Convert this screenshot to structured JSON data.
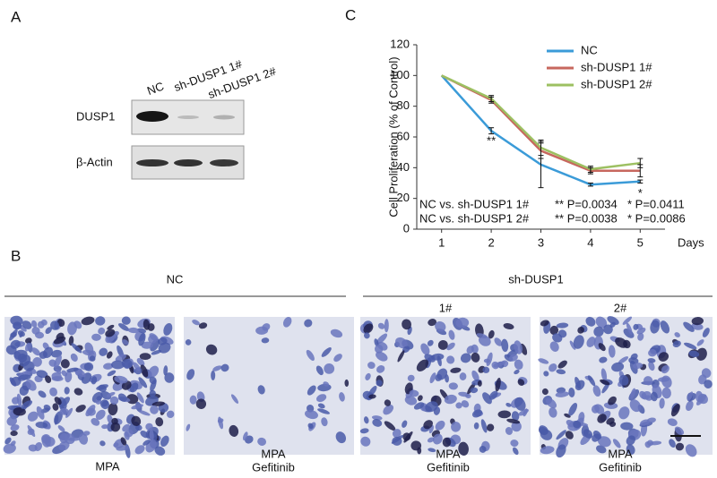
{
  "panel_a": {
    "panel_label": "A",
    "lanes": [
      "NC",
      "sh-DUSP1 1#",
      "sh-DUSP1 2#"
    ],
    "rows": [
      "DUSP1",
      "β-Actin"
    ]
  },
  "chart_data": {
    "type": "line",
    "panel_label": "C",
    "x": [
      1,
      2,
      3,
      4,
      5
    ],
    "xlim": [
      0.5,
      5.5
    ],
    "xticks": [
      1,
      2,
      3,
      4,
      5
    ],
    "x_label": "Days",
    "y_label": "Cell Proliferation (% of Control)",
    "ylim": [
      0,
      120
    ],
    "yticks": [
      0,
      20,
      40,
      60,
      80,
      100,
      120
    ],
    "legend": "top-right",
    "series": [
      {
        "name": "NC",
        "color": "#3b9bd8",
        "values": [
          100,
          64,
          42,
          29,
          31
        ],
        "errors": [
          0,
          2,
          15,
          1,
          1
        ]
      },
      {
        "name": "sh-DUSP1 1#",
        "color": "#c7675e",
        "values": [
          100,
          84,
          51,
          38,
          38
        ],
        "errors": [
          0,
          2,
          5,
          2,
          4
        ]
      },
      {
        "name": "sh-DUSP1 2#",
        "color": "#9dc062",
        "values": [
          100,
          85,
          53,
          39,
          43
        ],
        "errors": [
          0,
          2,
          5,
          2,
          3
        ]
      }
    ],
    "annotations": [
      {
        "x": 2,
        "y": 57,
        "text": "**"
      },
      {
        "x": 5,
        "y": 23,
        "text": "*"
      }
    ],
    "stats": [
      [
        "NC vs. sh-DUSP1 1#",
        "** P=0.0034",
        "* P=0.0411"
      ],
      [
        "NC vs. sh-DUSP1 2#",
        "** P=0.0038",
        "* P=0.0086"
      ]
    ]
  },
  "panel_b": {
    "panel_label": "B",
    "groups": [
      "NC",
      "sh-DUSP1"
    ],
    "subgroups": [
      "1#",
      "2#"
    ],
    "captions": [
      [
        "MPA"
      ],
      [
        "MPA",
        "Gefitinib"
      ],
      [
        "MPA",
        "Gefitinib"
      ],
      [
        "MPA",
        "Gefitinib"
      ]
    ]
  }
}
